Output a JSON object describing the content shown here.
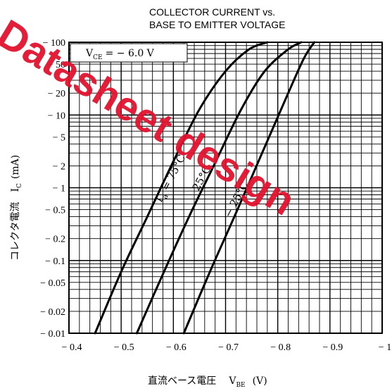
{
  "chart_data": {
    "type": "line",
    "title_lines": [
      "COLLECTOR CURRENT vs.",
      "BASE TO EMITTER VOLTAGE"
    ],
    "xlabel": "直流ベース電圧",
    "xlabel_symbol": "V",
    "xlabel_sub": "BE",
    "xlabel_unit": "(V)",
    "ylabel": "コレクタ電流",
    "ylabel_symbol": "I",
    "ylabel_sub": "C",
    "ylabel_unit": "(mA)",
    "x_scale": "linear",
    "y_scale": "log",
    "xlim": [
      -0.4,
      -1.0
    ],
    "ylim": [
      0.01,
      100
    ],
    "grid": true,
    "x_ticks": [
      -0.4,
      -0.5,
      -0.6,
      -0.7,
      -0.8,
      -0.9,
      -1.0
    ],
    "x_tick_labels": [
      "− 0.4",
      "− 0.5",
      "− 0.6",
      "− 0.7",
      "− 0.8",
      "− 0.9",
      "− 1"
    ],
    "y_ticks": [
      100,
      50,
      20,
      10,
      5,
      2,
      1,
      0.5,
      0.2,
      0.1,
      0.05,
      0.02,
      0.01
    ],
    "y_tick_labels": [
      "− 100",
      "− 50",
      "− 20",
      "− 10",
      "− 5",
      "− 2",
      "− 1",
      "− 0.5",
      "− 0.2",
      "− 0.1",
      "− 0.05",
      "− 0.02",
      "− 0.01"
    ],
    "condition": {
      "symbol": "V",
      "sub": "CE",
      "text": "= − 6.0 V"
    },
    "series": [
      {
        "name": "T_a = 75°C",
        "label_parts": {
          "symbol": "T",
          "sub": "a",
          "text": " = 75°C"
        },
        "x": [
          -0.45,
          -0.5,
          -0.55,
          -0.6,
          -0.65,
          -0.7,
          -0.745,
          -0.78
        ],
        "y": [
          0.01,
          0.07,
          0.4,
          2.3,
          12,
          40,
          80,
          100
        ]
      },
      {
        "name": "25°C",
        "label_parts": {
          "symbol": "",
          "sub": "",
          "text": "25°C"
        },
        "x": [
          -0.53,
          -0.58,
          -0.63,
          -0.68,
          -0.73,
          -0.775,
          -0.82,
          -0.845
        ],
        "y": [
          0.01,
          0.065,
          0.4,
          2.2,
          12,
          40,
          80,
          100
        ]
      },
      {
        "name": "− 25°C",
        "label_parts": {
          "symbol": "",
          "sub": "",
          "text": "− 25°C"
        },
        "x": [
          -0.62,
          -0.67,
          -0.72,
          -0.77,
          -0.82,
          -0.85,
          -0.87
        ],
        "y": [
          0.01,
          0.07,
          0.45,
          3,
          20,
          60,
          100
        ]
      }
    ],
    "watermark": "Datasheet design"
  },
  "colors": {
    "line": "#000000",
    "grid": "#000000",
    "background": "#ffffff",
    "watermark": "#e2122f"
  }
}
